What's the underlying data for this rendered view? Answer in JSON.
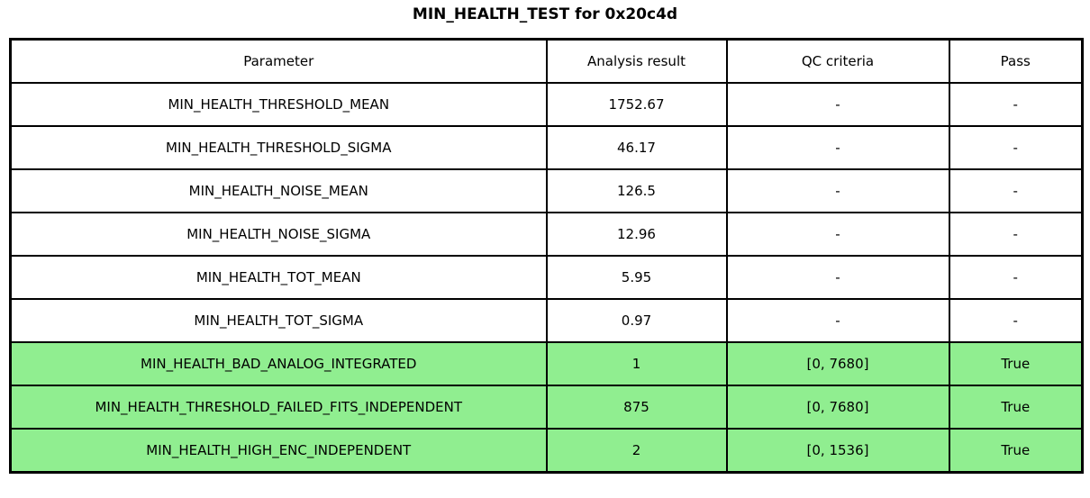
{
  "title": "MIN_HEALTH_TEST for 0x20c4d",
  "colors": {
    "pass_green": "#90EE90",
    "border": "#000000"
  },
  "table": {
    "columns": [
      "Parameter",
      "Analysis result",
      "QC criteria",
      "Pass"
    ],
    "rows": [
      {
        "cells": [
          "MIN_HEALTH_THRESHOLD_MEAN",
          "1752.67",
          "-",
          "-"
        ],
        "highlight": false
      },
      {
        "cells": [
          "MIN_HEALTH_THRESHOLD_SIGMA",
          "46.17",
          "-",
          "-"
        ],
        "highlight": false
      },
      {
        "cells": [
          "MIN_HEALTH_NOISE_MEAN",
          "126.5",
          "-",
          "-"
        ],
        "highlight": false
      },
      {
        "cells": [
          "MIN_HEALTH_NOISE_SIGMA",
          "12.96",
          "-",
          "-"
        ],
        "highlight": false
      },
      {
        "cells": [
          "MIN_HEALTH_TOT_MEAN",
          "5.95",
          "-",
          "-"
        ],
        "highlight": false
      },
      {
        "cells": [
          "MIN_HEALTH_TOT_SIGMA",
          "0.97",
          "-",
          "-"
        ],
        "highlight": false
      },
      {
        "cells": [
          "MIN_HEALTH_BAD_ANALOG_INTEGRATED",
          "1",
          "[0, 7680]",
          "True"
        ],
        "highlight": true
      },
      {
        "cells": [
          "MIN_HEALTH_THRESHOLD_FAILED_FITS_INDEPENDENT",
          "875",
          "[0, 7680]",
          "True"
        ],
        "highlight": true
      },
      {
        "cells": [
          "MIN_HEALTH_HIGH_ENC_INDEPENDENT",
          "2",
          "[0, 1536]",
          "True"
        ],
        "highlight": true
      }
    ]
  }
}
